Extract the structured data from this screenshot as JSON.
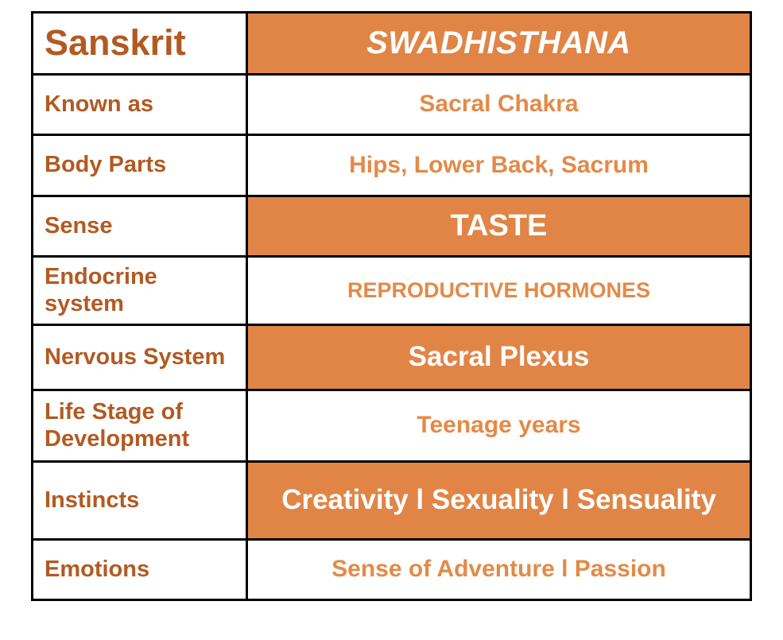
{
  "rows": [
    {
      "label": "Sanskrit",
      "value": "SWADHISTHANA"
    },
    {
      "label": "Known as",
      "value": "Sacral Chakra"
    },
    {
      "label": "Body Parts",
      "value": "Hips, Lower Back, Sacrum"
    },
    {
      "label": "Sense",
      "value": "TASTE"
    },
    {
      "label": "Endocrine system",
      "value": "REPRODUCTIVE HORMONES"
    },
    {
      "label": "Nervous System",
      "value": "Sacral Plexus"
    },
    {
      "label": "Life Stage of Development",
      "value": "Teenage years"
    },
    {
      "label": "Instincts",
      "value": "Creativity l Sexuality l Sensuality"
    },
    {
      "label": "Emotions",
      "value": "Sense of Adventure l Passion"
    }
  ],
  "colors": {
    "accent": "#e08546",
    "label_text": "#b25a22",
    "value_text": "#e38a47",
    "border": "#000000"
  }
}
